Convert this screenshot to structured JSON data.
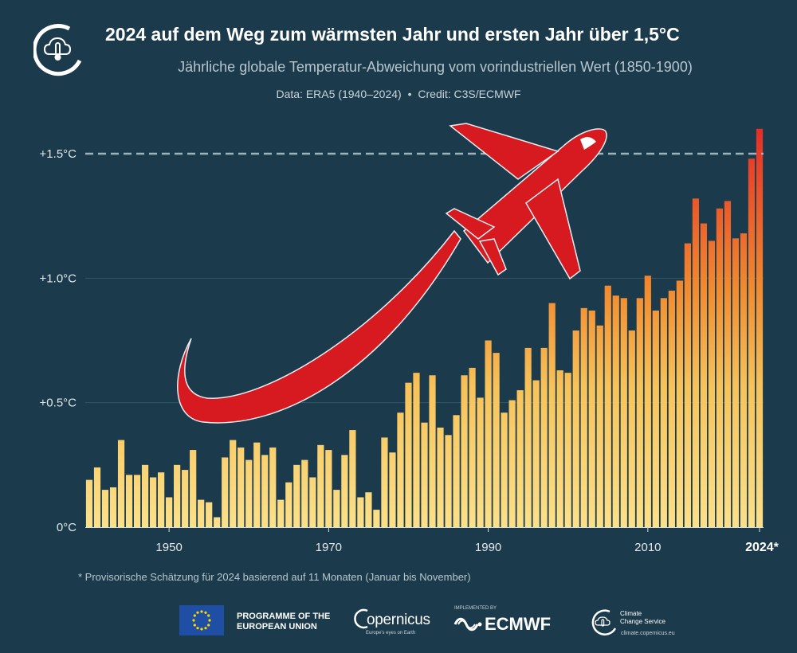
{
  "header": {
    "title": "2024 auf dem Weg zum wärmsten Jahr und ersten Jahr über 1,5°C",
    "subtitle": "Jährliche globale Temperatur-Abweichung vom vorindustriellen Wert (1850-1900)",
    "source_data": "Data: ERA5 (1940–2024)",
    "source_sep": "•",
    "source_credit": "Credit: C3S/ECMWF"
  },
  "footnote": "* Provisorische Schätzung für 2024 basierend auf 11 Monaten  (Januar bis November)",
  "footer": {
    "eu_line1": "PROGRAMME OF THE",
    "eu_line2": "EUROPEAN UNION",
    "copernicus": "opernicus",
    "copernicus_tag": "Europe's eyes on Earth",
    "implemented_by": "IMPLEMENTED BY",
    "ecmwf": "ECMWF",
    "ccs_line1": "Climate",
    "ccs_line2": "Change Service",
    "ccs_url": "climate.copernicus.eu"
  },
  "chart_data": {
    "type": "bar",
    "x_start": 1940,
    "x_end": 2024,
    "xticks": [
      {
        "value": 1950,
        "label": "1950"
      },
      {
        "value": 1970,
        "label": "1970"
      },
      {
        "value": 1990,
        "label": "1990"
      },
      {
        "value": 2010,
        "label": "2010"
      },
      {
        "value": 2024,
        "label": "2024*"
      }
    ],
    "yticks": [
      {
        "value": 0,
        "label": "0°C"
      },
      {
        "value": 0.5,
        "label": "+0.5°C"
      },
      {
        "value": 1.0,
        "label": "+1.0°C"
      },
      {
        "value": 1.5,
        "label": "+1.5°C"
      }
    ],
    "ylim": [
      0,
      1.6
    ],
    "threshold": 1.5,
    "values": [
      0.19,
      0.24,
      0.15,
      0.16,
      0.35,
      0.21,
      0.21,
      0.25,
      0.2,
      0.22,
      0.12,
      0.25,
      0.23,
      0.31,
      0.11,
      0.1,
      0.04,
      0.28,
      0.35,
      0.32,
      0.27,
      0.34,
      0.29,
      0.32,
      0.11,
      0.18,
      0.25,
      0.27,
      0.2,
      0.33,
      0.31,
      0.15,
      0.29,
      0.39,
      0.12,
      0.14,
      0.07,
      0.36,
      0.3,
      0.46,
      0.58,
      0.62,
      0.42,
      0.61,
      0.4,
      0.37,
      0.45,
      0.61,
      0.64,
      0.52,
      0.75,
      0.7,
      0.46,
      0.51,
      0.55,
      0.72,
      0.59,
      0.72,
      0.9,
      0.63,
      0.62,
      0.79,
      0.88,
      0.87,
      0.81,
      0.97,
      0.93,
      0.92,
      0.79,
      0.92,
      1.01,
      0.87,
      0.92,
      0.95,
      0.99,
      1.14,
      1.32,
      1.22,
      1.15,
      1.28,
      1.31,
      1.16,
      1.18,
      1.48,
      1.6
    ],
    "colors": {
      "low": "#f9d474",
      "mid": "#f48a2c",
      "high": "#e8332a",
      "threshold_line": "#9fb3bf",
      "plane": "#d61a20"
    }
  }
}
